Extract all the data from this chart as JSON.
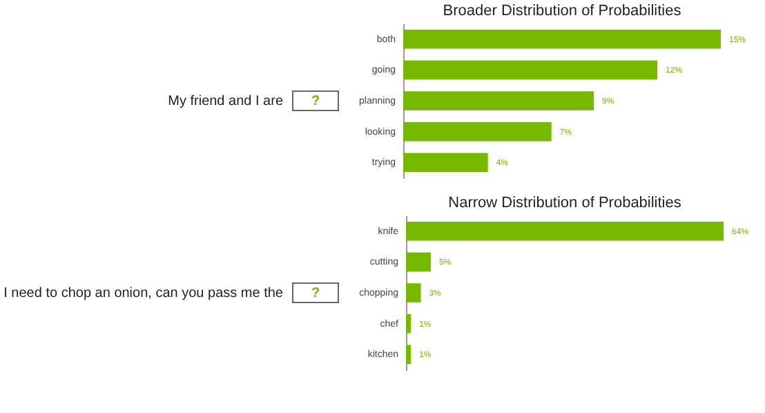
{
  "chart_data": [
    {
      "type": "bar",
      "orientation": "horizontal",
      "title": "Broader Distribution of Probabilities",
      "categories": [
        "both",
        "going",
        "planning",
        "looking",
        "trying"
      ],
      "series": [
        {
          "color": "#76b900",
          "values": [
            15,
            12,
            9,
            7,
            4
          ],
          "value_labels": [
            "15%",
            "12%",
            "9%",
            "7%",
            "4%"
          ]
        }
      ],
      "annotations": [
        "My friend and I are",
        "?"
      ],
      "tick_labels": "y"
    },
    {
      "type": "bar",
      "orientation": "horizontal",
      "title": "Narrow Distribution of Probabilities",
      "categories": [
        "knife",
        "cutting",
        "chopping",
        "chef",
        "kitchen"
      ],
      "series": [
        {
          "color": "#76b900",
          "values": [
            64,
            5,
            3,
            1,
            1
          ],
          "value_labels": [
            "64%",
            "5%",
            "3%",
            "1%",
            "1%"
          ]
        }
      ],
      "annotations": [
        "I need to chop an onion, can you pass me the",
        "?"
      ],
      "tick_labels": "y"
    }
  ]
}
